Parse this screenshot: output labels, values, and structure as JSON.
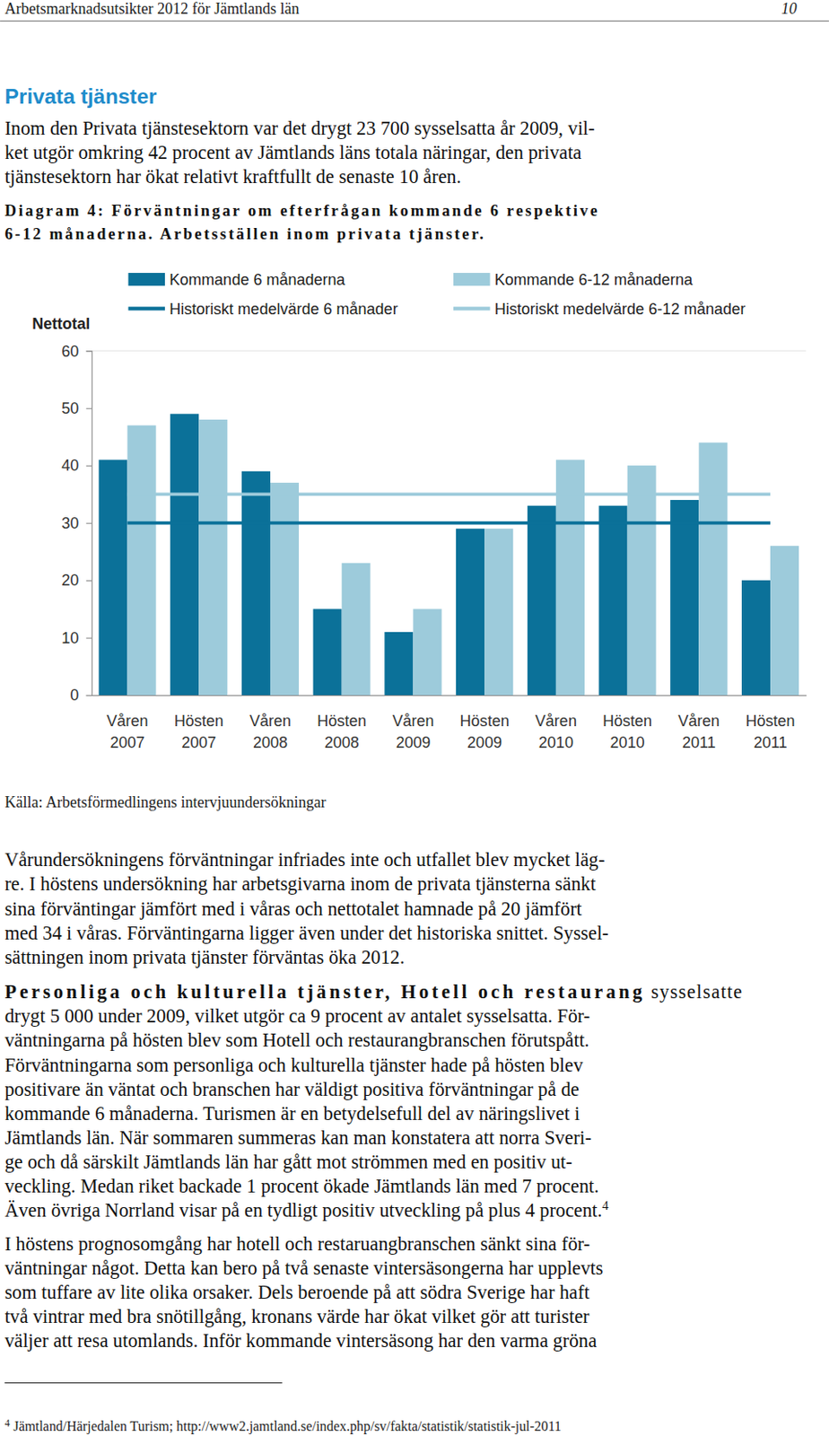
{
  "header": {
    "title": "Arbetsmarknadsutsikter 2012 för Jämtlands län",
    "page": "10"
  },
  "section_title": "Privata tjänster",
  "intro": [
    "Inom den Privata tjänstesektorn var det drygt 23 700 sysselsatta år 2009, vil-",
    "ket utgör omkring 42 procent av Jämtlands läns totala näringar, den privata",
    "tjänstesektorn har ökat relativt kraftfullt de senaste 10 åren."
  ],
  "chart_data": {
    "type": "bar",
    "title": [
      "Diagram 4: Förväntningar om efterfrågan kommande 6 respektive",
      "6-12 månaderna. Arbetsställen inom privata tjänster."
    ],
    "y_label": "Nettotal",
    "source": "Källa: Arbetsförmedlingens intervjuundersökningar",
    "categories": [
      "Våren 2007",
      "Hösten 2007",
      "Våren 2008",
      "Hösten 2008",
      "Våren 2009",
      "Hösten 2009",
      "Våren 2010",
      "Hösten 2010",
      "Våren 2011",
      "Hösten 2011"
    ],
    "series": [
      {
        "name": "Kommande 6 månaderna",
        "type": "bar",
        "color": "#0b7199",
        "values": [
          41,
          49,
          39,
          15,
          11,
          29,
          33,
          33,
          34,
          20
        ]
      },
      {
        "name": "Kommande 6-12 månaderna",
        "type": "bar",
        "color": "#9dcbdb",
        "values": [
          47,
          48,
          37,
          23,
          15,
          29,
          41,
          40,
          44,
          26
        ]
      },
      {
        "name": "Historiskt medelvärde 6 månader",
        "type": "line",
        "line_style": "solid",
        "color": "#0b7199",
        "values": [
          30,
          30,
          30,
          30,
          30,
          30,
          30,
          30,
          30,
          30
        ]
      },
      {
        "name": "Historiskt medelvärde 6-12 månader",
        "type": "line",
        "line_style": "solid",
        "color": "#9dcbdb",
        "values": [
          35,
          35,
          35,
          35,
          35,
          35,
          35,
          35,
          35,
          35
        ]
      }
    ],
    "ylim": [
      0,
      60
    ],
    "yticks": [
      0,
      10,
      20,
      30,
      40,
      50,
      60
    ],
    "grid": false,
    "legend": "top"
  },
  "paragraphs": [
    [
      "Vårundersökningens förväntningar infriades inte och utfallet blev mycket läg-",
      "re. I höstens undersökning har arbetsgivarna inom de privata tjänsterna sänkt",
      "sina förväntingar jämfört med i våras och nettotalet hamnade på 20 jämfört",
      "med 34 i våras. Förväntingarna ligger även under det historiska snittet. Syssel-",
      "sättningen inom privata tjänster förväntas öka 2012."
    ],
    [
      [
        {
          "text": "Personliga och kulturella tjänster, Hotell och restaurang",
          "style": "bold"
        },
        {
          "text": " sysselsatte"
        }
      ],
      "drygt 5 000 under 2009, vilket utgör ca 9 procent av antalet sysselsatta. För-",
      "väntningarna på hösten blev som Hotell och restaurangbranschen förutspått.",
      "Förväntningarna som personliga och kulturella tjänster hade på hösten blev",
      "positivare än väntat och branschen har väldigt positiva förväntningar på de",
      "kommande 6 månaderna. Turismen är en betydelsefull del av näringslivet i",
      "Jämtlands län. När sommaren summeras kan man konstatera att norra Sveri-",
      "ge och då särskilt Jämtlands län har gått mot strömmen med en positiv ut-",
      "veckling. Medan riket backade 1 procent ökade Jämtlands län med 7 procent.",
      [
        {
          "text": "Även övriga Norrland visar på en tydligt positiv utveckling på plus 4 procent."
        },
        {
          "text": "4",
          "style": "superscript"
        }
      ]
    ],
    [
      "I höstens prognosomgång har hotell och restaruangbranschen sänkt sina för-",
      "väntningar något. Detta kan bero på två senaste vintersäsongerna har upplevts",
      "som tuffare av lite olika orsaker. Dels beroende på att södra Sverige har haft",
      "två vintrar med bra snötillgång, kronans värde har ökat vilket gör att turister",
      "väljer att resa utomlands. Inför kommande vintersäsong har den varma gröna"
    ]
  ],
  "footnote": {
    "marker": "4",
    "text": "Jämtland/Härjedalen Turism; http://www2.jamtland.se/index.php/sv/fakta/statistik/statistik-jul-2011"
  }
}
